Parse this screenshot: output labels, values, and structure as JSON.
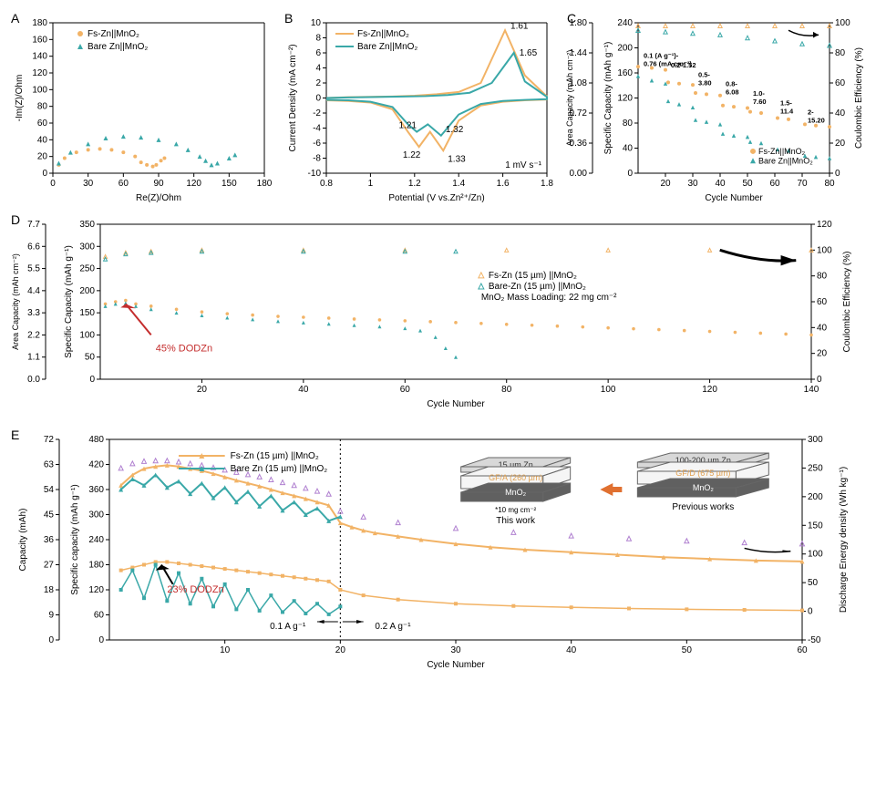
{
  "colors": {
    "fs": "#f2b366",
    "bare": "#3aa8a8",
    "axis": "#000000",
    "red_ann": "#c42d2d",
    "schematic_gray": "#b0b0b0",
    "schematic_dark": "#555555",
    "schematic_gold": "#e0a050"
  },
  "panelA": {
    "label": "A",
    "xlabel": "Re(Z)/Ohm",
    "ylabel": "-Im(Z)/Ohm",
    "xlim": [
      0,
      180
    ],
    "xtick_step": 30,
    "ylim": [
      0,
      180
    ],
    "ytick_step": 20,
    "legend": [
      {
        "label": "Fs-Zn||MnO₂",
        "color": "#f2b366"
      },
      {
        "label": "Bare Zn||MnO₂",
        "color": "#3aa8a8"
      }
    ],
    "series_fs": [
      [
        5,
        10
      ],
      [
        10,
        18
      ],
      [
        20,
        25
      ],
      [
        30,
        28
      ],
      [
        40,
        29
      ],
      [
        50,
        28
      ],
      [
        60,
        25
      ],
      [
        70,
        20
      ],
      [
        75,
        13
      ],
      [
        80,
        10
      ],
      [
        85,
        8
      ],
      [
        88,
        10
      ],
      [
        92,
        15
      ],
      [
        95,
        18
      ]
    ],
    "series_bare": [
      [
        5,
        12
      ],
      [
        15,
        25
      ],
      [
        30,
        35
      ],
      [
        45,
        42
      ],
      [
        60,
        44
      ],
      [
        75,
        43
      ],
      [
        90,
        40
      ],
      [
        105,
        35
      ],
      [
        115,
        28
      ],
      [
        125,
        20
      ],
      [
        130,
        15
      ],
      [
        135,
        10
      ],
      [
        140,
        12
      ],
      [
        150,
        18
      ],
      [
        155,
        22
      ]
    ]
  },
  "panelB": {
    "label": "B",
    "xlabel": "Potential (V vs.Zn²⁺/Zn)",
    "ylabel": "Current Density (mA cm⁻²)",
    "xlim": [
      0.8,
      1.8
    ],
    "xtick_step": 0.2,
    "ylim": [
      -10,
      10
    ],
    "ytick_step": 2,
    "legend": [
      {
        "label": "Fs-Zn||MnO₂",
        "color": "#f2b366"
      },
      {
        "label": "Bare Zn||MnO₂",
        "color": "#3aa8a8"
      }
    ],
    "annotations": {
      "rate": "1 mV s⁻¹",
      "peaks": [
        "1.61",
        "1.65",
        "1.21",
        "1.32",
        "1.22",
        "1.33"
      ]
    },
    "series_fs": [
      [
        0.8,
        -0.3
      ],
      [
        0.9,
        -0.4
      ],
      [
        1.0,
        -0.6
      ],
      [
        1.1,
        -1.5
      ],
      [
        1.17,
        -4.5
      ],
      [
        1.22,
        -6.5
      ],
      [
        1.27,
        -4.5
      ],
      [
        1.33,
        -7
      ],
      [
        1.4,
        -3
      ],
      [
        1.5,
        -1
      ],
      [
        1.6,
        -0.5
      ],
      [
        1.7,
        -0.3
      ],
      [
        1.8,
        -0.2
      ],
      [
        1.8,
        0.2
      ],
      [
        1.7,
        3
      ],
      [
        1.61,
        9
      ],
      [
        1.5,
        2
      ],
      [
        1.4,
        0.8
      ],
      [
        1.3,
        0.5
      ],
      [
        1.2,
        0.3
      ],
      [
        1.1,
        0.2
      ],
      [
        1.0,
        0.15
      ],
      [
        0.9,
        0.1
      ],
      [
        0.8,
        0
      ]
    ],
    "series_bare": [
      [
        0.8,
        -0.25
      ],
      [
        0.9,
        -0.3
      ],
      [
        1.0,
        -0.5
      ],
      [
        1.1,
        -1.2
      ],
      [
        1.17,
        -3.5
      ],
      [
        1.21,
        -4.5
      ],
      [
        1.26,
        -3.5
      ],
      [
        1.32,
        -5
      ],
      [
        1.4,
        -2.2
      ],
      [
        1.5,
        -0.8
      ],
      [
        1.6,
        -0.4
      ],
      [
        1.7,
        -0.25
      ],
      [
        1.8,
        -0.15
      ],
      [
        1.8,
        0.15
      ],
      [
        1.7,
        2.2
      ],
      [
        1.65,
        6
      ],
      [
        1.55,
        2
      ],
      [
        1.45,
        0.7
      ],
      [
        1.35,
        0.4
      ],
      [
        1.25,
        0.25
      ],
      [
        1.15,
        0.2
      ],
      [
        1.0,
        0.12
      ],
      [
        0.9,
        0.08
      ],
      [
        0.8,
        0
      ]
    ]
  },
  "panelC": {
    "label": "C",
    "xlabel": "Cycle Number",
    "ylabel": "Specific Capacity (mAh g⁻¹)",
    "ylabel2_left": "Area Capacity (mAh cm⁻²)",
    "ylabel2_right": "Coulombic Efficiency (%)",
    "xlim": [
      10,
      80
    ],
    "xticks": [
      20,
      30,
      40,
      50,
      60,
      70,
      80
    ],
    "ylim": [
      0,
      240
    ],
    "ytick_step": 40,
    "y2lim": [
      0,
      1.8
    ],
    "y2tick_step": 0.36,
    "y3lim": [
      0,
      100
    ],
    "y3tick_step": 20,
    "legend": [
      {
        "label": "Fs-Zn||MnO₂",
        "color": "#f2b366"
      },
      {
        "label": "Bare Zn||MnO₂",
        "color": "#3aa8a8"
      }
    ],
    "rate_labels": [
      "0.1 (A g⁻¹)-\n0.76 (mA cm⁻²)",
      "0.2-1.52",
      "0.5-\n3.80",
      "0.8-\n6.08",
      "1.0-\n7.60",
      "1.5-\n11.4",
      "2-\n15.20"
    ],
    "fs_capacity": [
      [
        10,
        170
      ],
      [
        15,
        168
      ],
      [
        20,
        165
      ],
      [
        21,
        145
      ],
      [
        25,
        143
      ],
      [
        30,
        141
      ],
      [
        31,
        128
      ],
      [
        35,
        126
      ],
      [
        40,
        124
      ],
      [
        41,
        108
      ],
      [
        45,
        106
      ],
      [
        50,
        104
      ],
      [
        51,
        98
      ],
      [
        55,
        96
      ],
      [
        61,
        88
      ],
      [
        65,
        86
      ],
      [
        71,
        78
      ],
      [
        75,
        76
      ],
      [
        80,
        74
      ]
    ],
    "bare_capacity": [
      [
        10,
        155
      ],
      [
        15,
        148
      ],
      [
        20,
        143
      ],
      [
        21,
        115
      ],
      [
        25,
        110
      ],
      [
        30,
        105
      ],
      [
        31,
        85
      ],
      [
        35,
        82
      ],
      [
        40,
        78
      ],
      [
        41,
        63
      ],
      [
        45,
        60
      ],
      [
        50,
        58
      ],
      [
        51,
        50
      ],
      [
        55,
        48
      ],
      [
        61,
        38
      ],
      [
        65,
        36
      ],
      [
        71,
        28
      ],
      [
        75,
        26
      ],
      [
        80,
        24
      ]
    ],
    "fs_ce": [
      [
        10,
        98
      ],
      [
        20,
        98
      ],
      [
        30,
        98
      ],
      [
        40,
        98
      ],
      [
        50,
        98
      ],
      [
        60,
        98
      ],
      [
        70,
        98
      ],
      [
        80,
        98
      ]
    ],
    "bare_ce": [
      [
        10,
        95
      ],
      [
        20,
        94
      ],
      [
        30,
        93
      ],
      [
        40,
        92
      ],
      [
        50,
        90
      ],
      [
        60,
        88
      ],
      [
        70,
        86
      ],
      [
        80,
        85
      ]
    ]
  },
  "panelD": {
    "label": "D",
    "xlabel": "Cycle Number",
    "ylabel": "Specific Capacity (mAh g⁻¹)",
    "ylabel2_left": "Area Capacity (mAh cm⁻²)",
    "ylabel2_right": "Coulombic Efficiency (%)",
    "xlim": [
      0,
      140
    ],
    "xtick_step": 20,
    "ylim": [
      0,
      350
    ],
    "ytick_step": 50,
    "y2lim": [
      0,
      7.7
    ],
    "y2tick_step": 1.1,
    "y3lim": [
      0,
      120
    ],
    "y3tick_step": 20,
    "legend": [
      {
        "label": "Fs-Zn (15 µm) ||MnO₂",
        "color": "#f2b366"
      },
      {
        "label": "Bare-Zn (15 µm) ||MnO₂",
        "color": "#3aa8a8"
      }
    ],
    "loading_label": "MnO₂ Mass Loading: 22 mg cm⁻²",
    "dod_label": "45% DODZn",
    "fs_capacity": [
      [
        1,
        170
      ],
      [
        3,
        175
      ],
      [
        5,
        178
      ],
      [
        7,
        170
      ],
      [
        10,
        165
      ],
      [
        15,
        158
      ],
      [
        20,
        152
      ],
      [
        25,
        148
      ],
      [
        30,
        145
      ],
      [
        35,
        142
      ],
      [
        40,
        140
      ],
      [
        45,
        138
      ],
      [
        50,
        136
      ],
      [
        55,
        134
      ],
      [
        60,
        132
      ],
      [
        65,
        130
      ],
      [
        70,
        128
      ],
      [
        75,
        126
      ],
      [
        80,
        124
      ],
      [
        85,
        122
      ],
      [
        90,
        120
      ],
      [
        95,
        118
      ],
      [
        100,
        116
      ],
      [
        105,
        114
      ],
      [
        110,
        112
      ],
      [
        115,
        110
      ],
      [
        120,
        108
      ],
      [
        125,
        106
      ],
      [
        130,
        104
      ],
      [
        135,
        102
      ],
      [
        140,
        100
      ]
    ],
    "bare_capacity": [
      [
        1,
        165
      ],
      [
        3,
        170
      ],
      [
        5,
        172
      ],
      [
        7,
        165
      ],
      [
        10,
        158
      ],
      [
        15,
        150
      ],
      [
        20,
        144
      ],
      [
        25,
        139
      ],
      [
        30,
        135
      ],
      [
        35,
        131
      ],
      [
        40,
        128
      ],
      [
        45,
        125
      ],
      [
        50,
        122
      ],
      [
        55,
        119
      ],
      [
        60,
        115
      ],
      [
        63,
        110
      ],
      [
        66,
        95
      ],
      [
        68,
        70
      ],
      [
        70,
        50
      ]
    ],
    "fs_ce": [
      [
        1,
        95
      ],
      [
        5,
        98
      ],
      [
        10,
        99
      ],
      [
        20,
        100
      ],
      [
        40,
        100
      ],
      [
        60,
        100
      ],
      [
        80,
        100
      ],
      [
        100,
        100
      ],
      [
        120,
        100
      ],
      [
        140,
        100
      ]
    ],
    "bare_ce": [
      [
        1,
        93
      ],
      [
        5,
        97
      ],
      [
        10,
        98
      ],
      [
        20,
        99
      ],
      [
        40,
        99
      ],
      [
        60,
        99
      ],
      [
        70,
        99
      ]
    ]
  },
  "panelE": {
    "label": "E",
    "xlabel": "Cycle Number",
    "ylabel": "Specific capacity (mAh g⁻¹)",
    "ylabel2_left": "Capacity (mAh)",
    "ylabel2_right": "Discharge Energy density (Wh kg⁻¹)",
    "xlim": [
      0,
      60
    ],
    "xtick_step": 10,
    "ylim": [
      0,
      480
    ],
    "ytick_step": 60,
    "y2lim": [
      0,
      72
    ],
    "y2tick_step": 9,
    "y3lim": [
      -50,
      300
    ],
    "y3tick_step": 50,
    "legend": [
      {
        "label": "Fs-Zn (15 µm) ||MnO₂",
        "color": "#f2b366"
      },
      {
        "label": "Bare Zn (15 µm) ||MnO₂",
        "color": "#3aa8a8"
      }
    ],
    "dod_label": "23% DODZn",
    "rate1": "0.1 A g⁻¹",
    "rate2": "0.2 A g⁻¹",
    "schematic": {
      "left": {
        "top": "15 µm Zn",
        "mid": "GF/A (260 µm)",
        "bot": "MnO₂",
        "note": "*10 mg cm⁻²",
        "label": "This work"
      },
      "right": {
        "top": "100-200 µm Zn",
        "mid": "GF/D (675 µm)",
        "bot": "MnO₂",
        "label": "Previous works"
      }
    },
    "fs_capacity": [
      [
        1,
        370
      ],
      [
        2,
        395
      ],
      [
        3,
        410
      ],
      [
        4,
        415
      ],
      [
        5,
        418
      ],
      [
        6,
        415
      ],
      [
        7,
        410
      ],
      [
        8,
        405
      ],
      [
        9,
        398
      ],
      [
        10,
        390
      ],
      [
        11,
        382
      ],
      [
        12,
        375
      ],
      [
        13,
        368
      ],
      [
        14,
        360
      ],
      [
        15,
        352
      ],
      [
        16,
        345
      ],
      [
        17,
        338
      ],
      [
        18,
        330
      ],
      [
        19,
        322
      ],
      [
        20,
        280
      ],
      [
        21,
        270
      ],
      [
        22,
        262
      ],
      [
        23,
        256
      ],
      [
        25,
        248
      ],
      [
        27,
        240
      ],
      [
        30,
        230
      ],
      [
        33,
        222
      ],
      [
        36,
        216
      ],
      [
        40,
        210
      ],
      [
        44,
        204
      ],
      [
        48,
        198
      ],
      [
        52,
        194
      ],
      [
        56,
        190
      ],
      [
        60,
        188
      ]
    ],
    "bare_capacity": [
      [
        1,
        360
      ],
      [
        2,
        385
      ],
      [
        3,
        370
      ],
      [
        4,
        395
      ],
      [
        5,
        365
      ],
      [
        6,
        380
      ],
      [
        7,
        350
      ],
      [
        8,
        375
      ],
      [
        9,
        340
      ],
      [
        10,
        365
      ],
      [
        11,
        330
      ],
      [
        12,
        355
      ],
      [
        13,
        320
      ],
      [
        14,
        345
      ],
      [
        15,
        310
      ],
      [
        16,
        330
      ],
      [
        17,
        300
      ],
      [
        18,
        315
      ],
      [
        19,
        285
      ],
      [
        20,
        295
      ]
    ],
    "fs_cap_mAh": [
      [
        1,
        25
      ],
      [
        2,
        26
      ],
      [
        3,
        27
      ],
      [
        4,
        28
      ],
      [
        5,
        28
      ],
      [
        6,
        27.5
      ],
      [
        7,
        27
      ],
      [
        8,
        26.5
      ],
      [
        9,
        26
      ],
      [
        10,
        25.5
      ],
      [
        11,
        25
      ],
      [
        12,
        24.5
      ],
      [
        13,
        24
      ],
      [
        14,
        23.5
      ],
      [
        15,
        23
      ],
      [
        16,
        22.5
      ],
      [
        17,
        22
      ],
      [
        18,
        21.5
      ],
      [
        19,
        21
      ],
      [
        20,
        18
      ],
      [
        22,
        16
      ],
      [
        25,
        14.5
      ],
      [
        30,
        13
      ],
      [
        35,
        12.2
      ],
      [
        40,
        11.7
      ],
      [
        45,
        11.3
      ],
      [
        50,
        11
      ],
      [
        55,
        10.8
      ],
      [
        60,
        10.6
      ]
    ],
    "bare_cap_mAh": [
      [
        1,
        18
      ],
      [
        2,
        25
      ],
      [
        3,
        15
      ],
      [
        4,
        27
      ],
      [
        5,
        14
      ],
      [
        6,
        24
      ],
      [
        7,
        13
      ],
      [
        8,
        22
      ],
      [
        9,
        12
      ],
      [
        10,
        20
      ],
      [
        11,
        11
      ],
      [
        12,
        18
      ],
      [
        13,
        10.5
      ],
      [
        14,
        16
      ],
      [
        15,
        10
      ],
      [
        16,
        14
      ],
      [
        17,
        9.5
      ],
      [
        18,
        13
      ],
      [
        19,
        9.2
      ],
      [
        20,
        12
      ]
    ],
    "fs_energy": [
      [
        1,
        250
      ],
      [
        2,
        258
      ],
      [
        3,
        262
      ],
      [
        4,
        263
      ],
      [
        5,
        263
      ],
      [
        6,
        261
      ],
      [
        7,
        258
      ],
      [
        8,
        255
      ],
      [
        9,
        251
      ],
      [
        10,
        247
      ],
      [
        11,
        243
      ],
      [
        12,
        239
      ],
      [
        13,
        235
      ],
      [
        14,
        230
      ],
      [
        15,
        225
      ],
      [
        16,
        220
      ],
      [
        17,
        215
      ],
      [
        18,
        210
      ],
      [
        19,
        205
      ],
      [
        20,
        175
      ],
      [
        22,
        165
      ],
      [
        25,
        155
      ],
      [
        30,
        145
      ],
      [
        35,
        138
      ],
      [
        40,
        132
      ],
      [
        45,
        127
      ],
      [
        50,
        123
      ],
      [
        55,
        120
      ],
      [
        60,
        118
      ]
    ]
  }
}
